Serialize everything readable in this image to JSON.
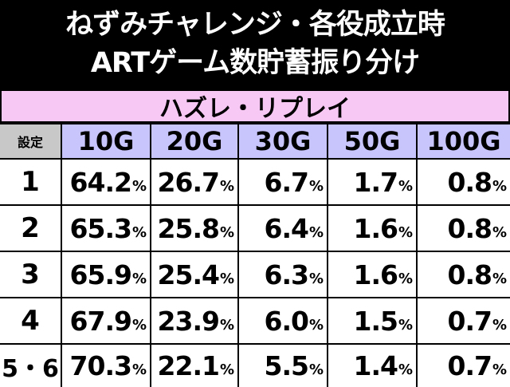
{
  "title": {
    "line1": "ねずみチャレンジ・各役成立時",
    "line2": "ARTゲーム数貯蓄振り分け"
  },
  "section_label": "ハズレ・リプレイ",
  "header": {
    "setting": "設定",
    "columns": [
      "10G",
      "20G",
      "30G",
      "50G",
      "100G"
    ]
  },
  "percent_sign": "%",
  "rows": [
    {
      "label": "1",
      "values": [
        "64.2",
        "26.7",
        "6.7",
        "1.7",
        "0.8"
      ]
    },
    {
      "label": "2",
      "values": [
        "65.3",
        "25.8",
        "6.4",
        "1.6",
        "0.8"
      ]
    },
    {
      "label": "3",
      "values": [
        "65.9",
        "25.4",
        "6.3",
        "1.6",
        "0.8"
      ]
    },
    {
      "label": "4",
      "values": [
        "67.9",
        "23.9",
        "6.0",
        "1.5",
        "0.7"
      ]
    },
    {
      "label": "5・6",
      "values": [
        "70.3",
        "22.1",
        "5.5",
        "1.4",
        "0.7"
      ]
    }
  ],
  "colors": {
    "section_bg": "#f8c8f4",
    "header_bg": "#c8c4fc",
    "setting_bg": "#c8c8c8",
    "title_bg": "#000000",
    "title_fg": "#ffffff"
  }
}
